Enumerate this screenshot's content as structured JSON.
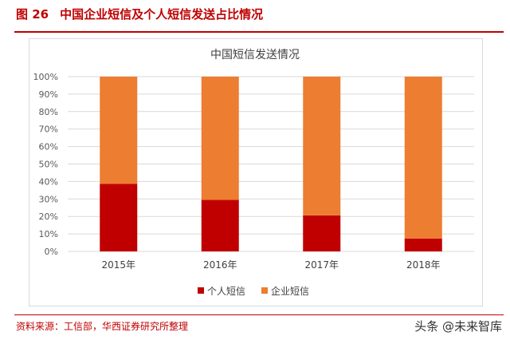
{
  "figure": {
    "number": "图 26",
    "title": "中国企业短信及个人短信发送占比情况",
    "source": "资料来源：工信部，华西证券研究所整理",
    "watermark": "头条 @未来智库"
  },
  "chart_data": {
    "type": "bar",
    "stacked": true,
    "title": "中国短信发送情况",
    "categories": [
      "2015年",
      "2016年",
      "2017年",
      "2018年"
    ],
    "series": [
      {
        "name": "个人短信",
        "values": [
          38.7,
          29.5,
          20.6,
          7.4
        ],
        "color": "#c00000"
      },
      {
        "name": "企业短信",
        "values": [
          61.3,
          70.5,
          79.4,
          92.6
        ],
        "color": "#ed7d31"
      }
    ],
    "ylim": [
      0,
      100
    ],
    "yticks": [
      "0%",
      "10%",
      "20%",
      "30%",
      "40%",
      "50%",
      "60%",
      "70%",
      "80%",
      "90%",
      "100%"
    ],
    "grid": true,
    "legend": "bottom"
  }
}
